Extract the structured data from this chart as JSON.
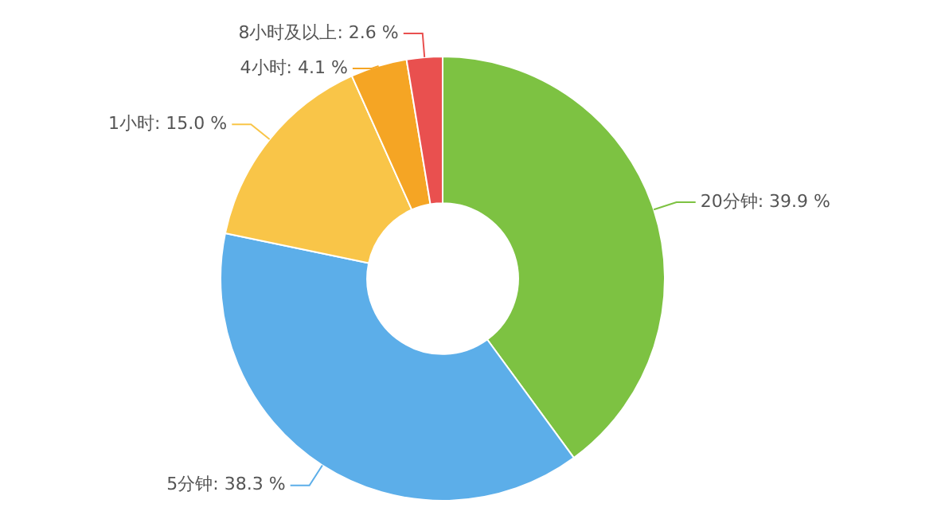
{
  "chart_data": {
    "type": "donut",
    "categories": [
      "20分钟",
      "5分钟",
      "1小时",
      "4小时",
      "8小时及以上"
    ],
    "values": [
      39.9,
      38.3,
      15.0,
      4.1,
      2.6
    ],
    "value_labels": [
      "39.9 %",
      "38.3 %",
      "15.0 %",
      "4.1 %",
      "2.6 %"
    ],
    "colors": [
      "#7dc242",
      "#5caee9",
      "#f9c548",
      "#f5a524",
      "#e9504f"
    ],
    "legend": false
  }
}
